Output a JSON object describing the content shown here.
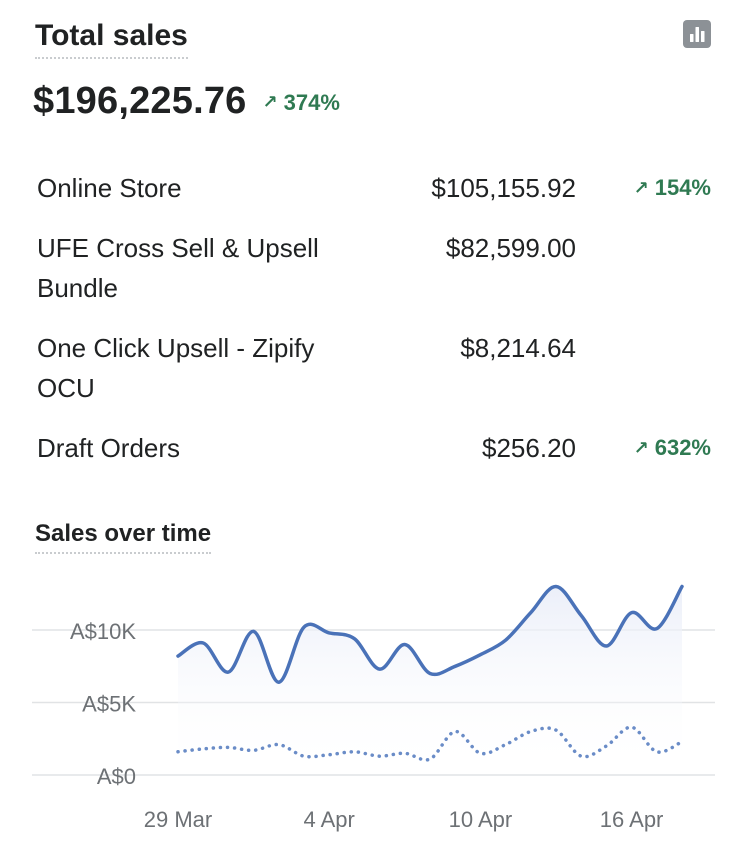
{
  "header": {
    "title": "Total sales",
    "chart_icon": "bar-chart-icon"
  },
  "total": {
    "value": "$196,225.76",
    "delta": "374%",
    "delta_icon": "arrow-up-right-icon",
    "delta_color": "#2f7a52"
  },
  "channels": [
    {
      "label": "Online Store",
      "amount": "$105,155.92",
      "delta": "154%"
    },
    {
      "label": "UFE Cross Sell & Upsell Bundle",
      "amount": "$82,599.00",
      "delta": ""
    },
    {
      "label": "One Click Upsell - Zipify OCU",
      "amount": "$8,214.64",
      "delta": ""
    },
    {
      "label": "Draft Orders",
      "amount": "$256.20",
      "delta": "632%"
    }
  ],
  "chart_section_title": "Sales over time",
  "chart_data": {
    "type": "line",
    "title": "Sales over time",
    "y_ticks": [
      "A$0",
      "A$5K",
      "A$10K"
    ],
    "y_tick_values": [
      0,
      5000,
      10000
    ],
    "ylim": [
      0,
      14000
    ],
    "x_ticks": [
      "29 Mar",
      "4 Apr",
      "10 Apr",
      "16 Apr"
    ],
    "x_tick_dates": [
      "2025-03-29",
      "2025-04-04",
      "2025-04-10",
      "2025-04-16"
    ],
    "x_range": [
      "2025-03-29",
      "2025-04-18"
    ],
    "grid": true,
    "legend": "none",
    "series": [
      {
        "style": "solid",
        "color": "#4a72b8",
        "x": [
          "2025-03-29",
          "2025-03-30",
          "2025-03-31",
          "2025-04-01",
          "2025-04-02",
          "2025-04-03",
          "2025-04-04",
          "2025-04-05",
          "2025-04-06",
          "2025-04-07",
          "2025-04-08",
          "2025-04-09",
          "2025-04-10",
          "2025-04-11",
          "2025-04-12",
          "2025-04-13",
          "2025-04-14",
          "2025-04-15",
          "2025-04-16",
          "2025-04-17",
          "2025-04-18"
        ],
        "values": [
          8200,
          9100,
          7100,
          9900,
          6400,
          10200,
          9800,
          9400,
          7300,
          9000,
          7000,
          7500,
          8300,
          9300,
          11200,
          13000,
          11000,
          8900,
          11200,
          10100,
          13000
        ]
      },
      {
        "style": "dotted",
        "color": "#6a8cc7",
        "x": [
          "2025-03-29",
          "2025-03-30",
          "2025-03-31",
          "2025-04-01",
          "2025-04-02",
          "2025-04-03",
          "2025-04-04",
          "2025-04-05",
          "2025-04-06",
          "2025-04-07",
          "2025-04-08",
          "2025-04-09",
          "2025-04-10",
          "2025-04-11",
          "2025-04-12",
          "2025-04-13",
          "2025-04-14",
          "2025-04-15",
          "2025-04-16",
          "2025-04-17",
          "2025-04-18"
        ],
        "values": [
          1600,
          1800,
          1900,
          1700,
          2100,
          1300,
          1400,
          1600,
          1300,
          1500,
          1100,
          3000,
          1500,
          2100,
          3000,
          3100,
          1300,
          2000,
          3300,
          1600,
          2300
        ]
      }
    ]
  }
}
